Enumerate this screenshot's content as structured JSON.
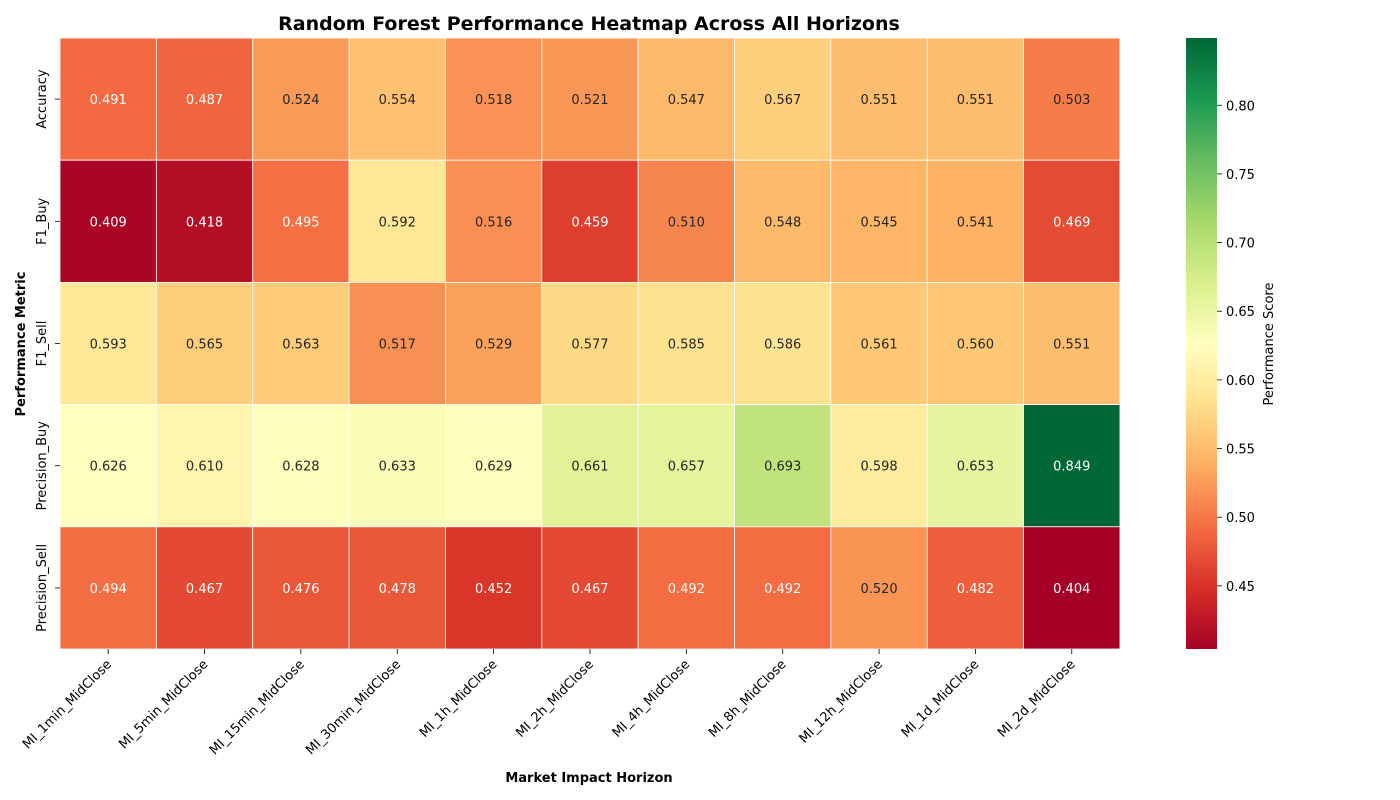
{
  "chart_data": {
    "type": "heatmap",
    "title": "Random Forest Performance Heatmap Across All Horizons",
    "xlabel": "Market Impact Horizon",
    "ylabel": "Performance Metric",
    "x_categories": [
      "MI_1min_MidClose",
      "MI_5min_MidClose",
      "MI_15min_MidClose",
      "MI_30min_MidClose",
      "MI_1h_MidClose",
      "MI_2h_MidClose",
      "MI_4h_MidClose",
      "MI_8h_MidClose",
      "MI_12h_MidClose",
      "MI_1d_MidClose",
      "MI_2d_MidClose"
    ],
    "y_categories": [
      "Accuracy",
      "F1_Buy",
      "F1_Sell",
      "Precision_Buy",
      "Precision_Sell"
    ],
    "values": [
      [
        0.491,
        0.487,
        0.524,
        0.554,
        0.518,
        0.521,
        0.547,
        0.567,
        0.551,
        0.551,
        0.503
      ],
      [
        0.409,
        0.418,
        0.495,
        0.592,
        0.516,
        0.459,
        0.51,
        0.548,
        0.545,
        0.541,
        0.469
      ],
      [
        0.593,
        0.565,
        0.563,
        0.517,
        0.529,
        0.577,
        0.585,
        0.586,
        0.561,
        0.56,
        0.551
      ],
      [
        0.626,
        0.61,
        0.628,
        0.633,
        0.629,
        0.661,
        0.657,
        0.693,
        0.598,
        0.653,
        0.849
      ],
      [
        0.494,
        0.467,
        0.476,
        0.478,
        0.452,
        0.467,
        0.492,
        0.492,
        0.52,
        0.482,
        0.404
      ]
    ],
    "value_format": "0.000",
    "colormap": "RdYlGn",
    "colormap_colors": [
      "#a50026",
      "#d73027",
      "#f46d43",
      "#fdae61",
      "#fee08b",
      "#ffffbf",
      "#d9ef8b",
      "#a6d96a",
      "#66bd63",
      "#1a9850",
      "#006837"
    ],
    "vmin": 0.404,
    "vmax": 0.849,
    "colorbar": {
      "label": "Performance Score",
      "ticks": [
        0.45,
        0.5,
        0.55,
        0.6,
        0.65,
        0.7,
        0.75,
        0.8
      ],
      "tick_labels": [
        "0.45",
        "0.50",
        "0.55",
        "0.60",
        "0.65",
        "0.70",
        "0.75",
        "0.80"
      ]
    },
    "grid": false,
    "cell_border_color": "#ffffff"
  }
}
